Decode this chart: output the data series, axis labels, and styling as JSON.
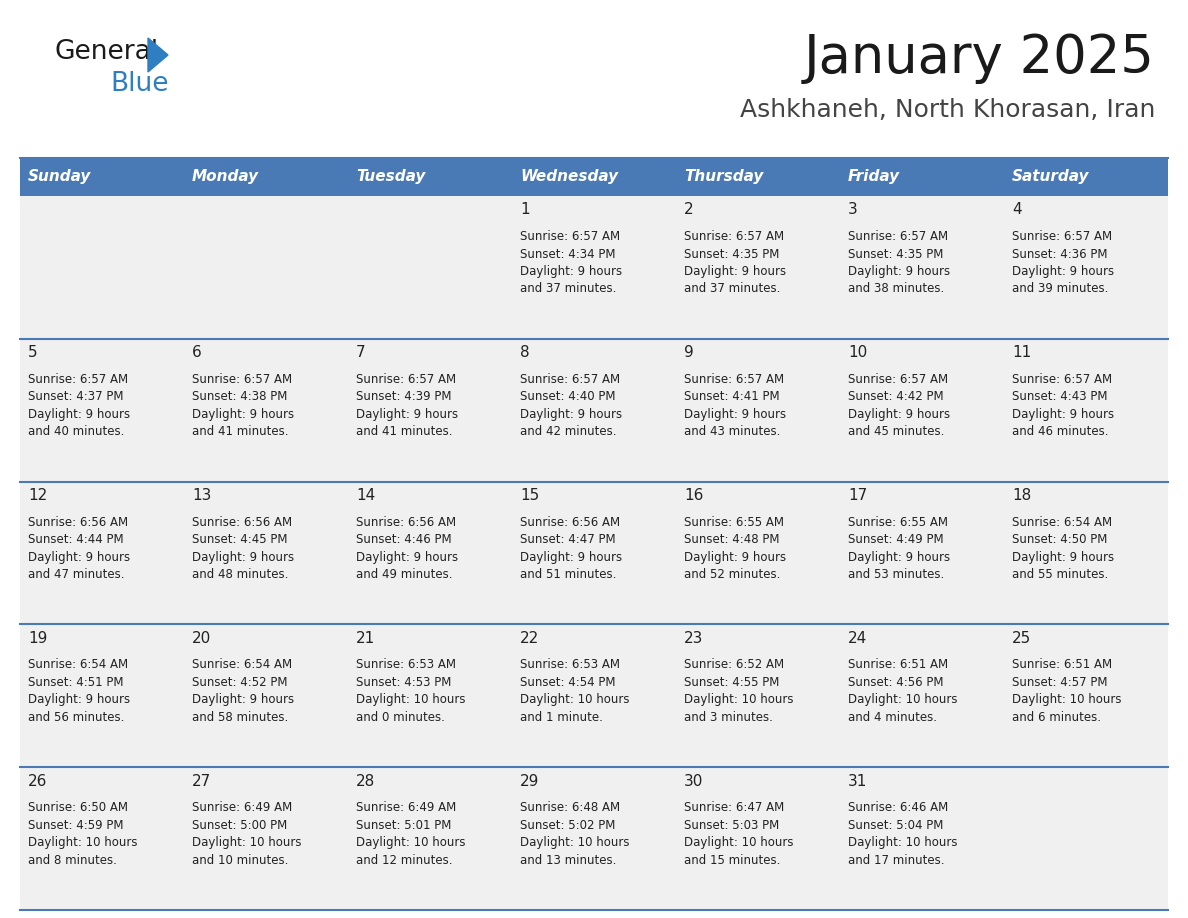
{
  "title": "January 2025",
  "subtitle": "Ashkhaneh, North Khorasan, Iran",
  "header_bg": "#4a7ab5",
  "header_text": "#FFFFFF",
  "row_bg": "#f0f0f0",
  "day_names": [
    "Sunday",
    "Monday",
    "Tuesday",
    "Wednesday",
    "Thursday",
    "Friday",
    "Saturday"
  ],
  "cell_text_color": "#222222",
  "day_num_color": "#222222",
  "line_color": "#4a7ab5",
  "calendar": [
    [
      {
        "day": "",
        "sunrise": "",
        "sunset": "",
        "daylight": ""
      },
      {
        "day": "",
        "sunrise": "",
        "sunset": "",
        "daylight": ""
      },
      {
        "day": "",
        "sunrise": "",
        "sunset": "",
        "daylight": ""
      },
      {
        "day": "1",
        "sunrise": "6:57 AM",
        "sunset": "4:34 PM",
        "daylight": "9 hours\nand 37 minutes."
      },
      {
        "day": "2",
        "sunrise": "6:57 AM",
        "sunset": "4:35 PM",
        "daylight": "9 hours\nand 37 minutes."
      },
      {
        "day": "3",
        "sunrise": "6:57 AM",
        "sunset": "4:35 PM",
        "daylight": "9 hours\nand 38 minutes."
      },
      {
        "day": "4",
        "sunrise": "6:57 AM",
        "sunset": "4:36 PM",
        "daylight": "9 hours\nand 39 minutes."
      }
    ],
    [
      {
        "day": "5",
        "sunrise": "6:57 AM",
        "sunset": "4:37 PM",
        "daylight": "9 hours\nand 40 minutes."
      },
      {
        "day": "6",
        "sunrise": "6:57 AM",
        "sunset": "4:38 PM",
        "daylight": "9 hours\nand 41 minutes."
      },
      {
        "day": "7",
        "sunrise": "6:57 AM",
        "sunset": "4:39 PM",
        "daylight": "9 hours\nand 41 minutes."
      },
      {
        "day": "8",
        "sunrise": "6:57 AM",
        "sunset": "4:40 PM",
        "daylight": "9 hours\nand 42 minutes."
      },
      {
        "day": "9",
        "sunrise": "6:57 AM",
        "sunset": "4:41 PM",
        "daylight": "9 hours\nand 43 minutes."
      },
      {
        "day": "10",
        "sunrise": "6:57 AM",
        "sunset": "4:42 PM",
        "daylight": "9 hours\nand 45 minutes."
      },
      {
        "day": "11",
        "sunrise": "6:57 AM",
        "sunset": "4:43 PM",
        "daylight": "9 hours\nand 46 minutes."
      }
    ],
    [
      {
        "day": "12",
        "sunrise": "6:56 AM",
        "sunset": "4:44 PM",
        "daylight": "9 hours\nand 47 minutes."
      },
      {
        "day": "13",
        "sunrise": "6:56 AM",
        "sunset": "4:45 PM",
        "daylight": "9 hours\nand 48 minutes."
      },
      {
        "day": "14",
        "sunrise": "6:56 AM",
        "sunset": "4:46 PM",
        "daylight": "9 hours\nand 49 minutes."
      },
      {
        "day": "15",
        "sunrise": "6:56 AM",
        "sunset": "4:47 PM",
        "daylight": "9 hours\nand 51 minutes."
      },
      {
        "day": "16",
        "sunrise": "6:55 AM",
        "sunset": "4:48 PM",
        "daylight": "9 hours\nand 52 minutes."
      },
      {
        "day": "17",
        "sunrise": "6:55 AM",
        "sunset": "4:49 PM",
        "daylight": "9 hours\nand 53 minutes."
      },
      {
        "day": "18",
        "sunrise": "6:54 AM",
        "sunset": "4:50 PM",
        "daylight": "9 hours\nand 55 minutes."
      }
    ],
    [
      {
        "day": "19",
        "sunrise": "6:54 AM",
        "sunset": "4:51 PM",
        "daylight": "9 hours\nand 56 minutes."
      },
      {
        "day": "20",
        "sunrise": "6:54 AM",
        "sunset": "4:52 PM",
        "daylight": "9 hours\nand 58 minutes."
      },
      {
        "day": "21",
        "sunrise": "6:53 AM",
        "sunset": "4:53 PM",
        "daylight": "10 hours\nand 0 minutes."
      },
      {
        "day": "22",
        "sunrise": "6:53 AM",
        "sunset": "4:54 PM",
        "daylight": "10 hours\nand 1 minute."
      },
      {
        "day": "23",
        "sunrise": "6:52 AM",
        "sunset": "4:55 PM",
        "daylight": "10 hours\nand 3 minutes."
      },
      {
        "day": "24",
        "sunrise": "6:51 AM",
        "sunset": "4:56 PM",
        "daylight": "10 hours\nand 4 minutes."
      },
      {
        "day": "25",
        "sunrise": "6:51 AM",
        "sunset": "4:57 PM",
        "daylight": "10 hours\nand 6 minutes."
      }
    ],
    [
      {
        "day": "26",
        "sunrise": "6:50 AM",
        "sunset": "4:59 PM",
        "daylight": "10 hours\nand 8 minutes."
      },
      {
        "day": "27",
        "sunrise": "6:49 AM",
        "sunset": "5:00 PM",
        "daylight": "10 hours\nand 10 minutes."
      },
      {
        "day": "28",
        "sunrise": "6:49 AM",
        "sunset": "5:01 PM",
        "daylight": "10 hours\nand 12 minutes."
      },
      {
        "day": "29",
        "sunrise": "6:48 AM",
        "sunset": "5:02 PM",
        "daylight": "10 hours\nand 13 minutes."
      },
      {
        "day": "30",
        "sunrise": "6:47 AM",
        "sunset": "5:03 PM",
        "daylight": "10 hours\nand 15 minutes."
      },
      {
        "day": "31",
        "sunrise": "6:46 AM",
        "sunset": "5:04 PM",
        "daylight": "10 hours\nand 17 minutes."
      },
      {
        "day": "",
        "sunrise": "",
        "sunset": "",
        "daylight": ""
      }
    ]
  ]
}
